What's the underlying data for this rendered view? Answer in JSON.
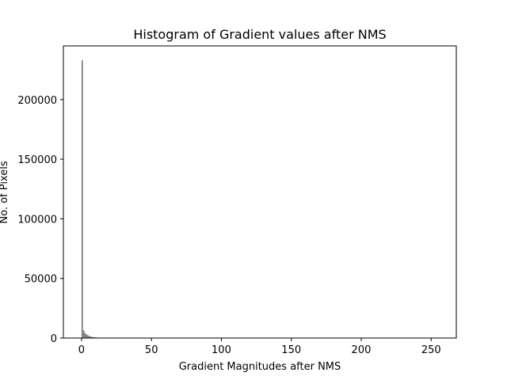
{
  "chart_data": {
    "type": "bar",
    "title": "Histogram of Gradient values after NMS",
    "xlabel": "Gradient Magnitudes after NMS",
    "ylabel": "No. of Pixels",
    "xlim": [
      -13,
      268
    ],
    "ylim": [
      0,
      245000
    ],
    "xticks": [
      0,
      50,
      100,
      150,
      200,
      250
    ],
    "yticks": [
      0,
      50000,
      100000,
      150000,
      200000
    ],
    "bar_color": "#808080",
    "grid": false,
    "bins": [
      {
        "x": 0,
        "value": 233000
      },
      {
        "x": 1,
        "value": 6500
      },
      {
        "x": 2,
        "value": 4200
      },
      {
        "x": 3,
        "value": 3100
      },
      {
        "x": 4,
        "value": 2300
      },
      {
        "x": 5,
        "value": 1700
      },
      {
        "x": 6,
        "value": 1300
      },
      {
        "x": 7,
        "value": 1000
      },
      {
        "x": 8,
        "value": 800
      },
      {
        "x": 9,
        "value": 650
      },
      {
        "x": 10,
        "value": 500
      },
      {
        "x": 11,
        "value": 400
      },
      {
        "x": 12,
        "value": 300
      },
      {
        "x": 13,
        "value": 230
      },
      {
        "x": 14,
        "value": 180
      },
      {
        "x": 15,
        "value": 140
      },
      {
        "x": 16,
        "value": 110
      },
      {
        "x": 17,
        "value": 90
      },
      {
        "x": 18,
        "value": 70
      },
      {
        "x": 19,
        "value": 55
      },
      {
        "x": 20,
        "value": 40
      }
    ]
  }
}
